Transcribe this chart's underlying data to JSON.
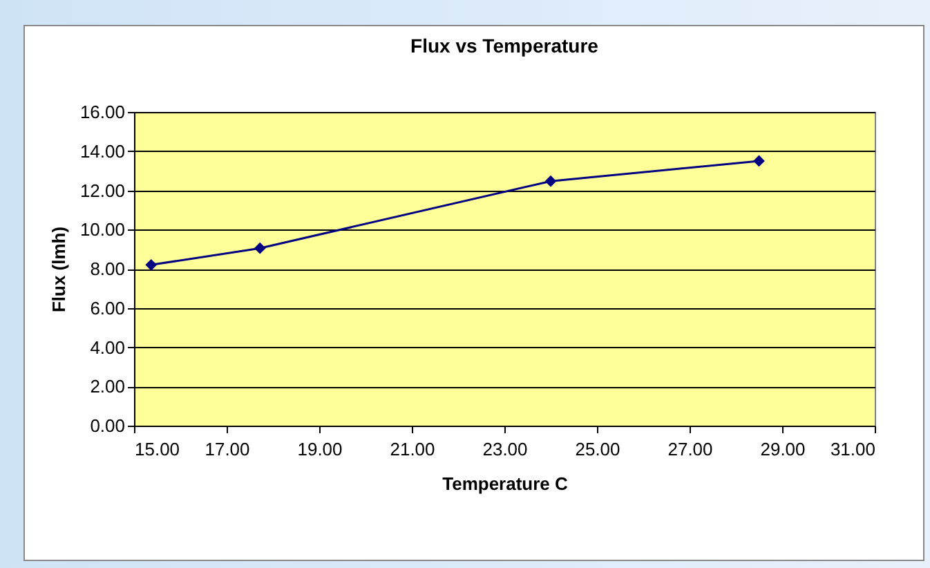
{
  "chart_data": {
    "type": "line",
    "title": "Flux vs Temperature",
    "xlabel": "Temperature C",
    "ylabel": "Flux (lmh)",
    "x": [
      15.37,
      17.72,
      24.0,
      28.5
    ],
    "series": [
      {
        "color": "#000080",
        "values": [
          8.2,
          9.05,
          12.47,
          13.5
        ]
      }
    ],
    "xlim": [
      15,
      31
    ],
    "xticks": [
      {
        "value": 15,
        "label": "15.00"
      },
      {
        "value": 17,
        "label": "17.00"
      },
      {
        "value": 19,
        "label": "19.00"
      },
      {
        "value": 21,
        "label": "21.00"
      },
      {
        "value": 23,
        "label": "23.00"
      },
      {
        "value": 25,
        "label": "25.00"
      },
      {
        "value": 27,
        "label": "27.00"
      },
      {
        "value": 29,
        "label": "29.00"
      },
      {
        "value": 31,
        "label": "31.00"
      }
    ],
    "ylim": [
      0,
      16
    ],
    "yticks": [
      {
        "value": 0,
        "label": "0.00"
      },
      {
        "value": 2,
        "label": "2.00"
      },
      {
        "value": 4,
        "label": "4.00"
      },
      {
        "value": 6,
        "label": "6.00"
      },
      {
        "value": 8,
        "label": "8.00"
      },
      {
        "value": 10,
        "label": "10.00"
      },
      {
        "value": 12,
        "label": "12.00"
      },
      {
        "value": 14,
        "label": "14.00"
      },
      {
        "value": 16,
        "label": "16.00"
      }
    ],
    "grid": "y",
    "marker": "diamond",
    "line_style": "solid",
    "legend": false
  }
}
